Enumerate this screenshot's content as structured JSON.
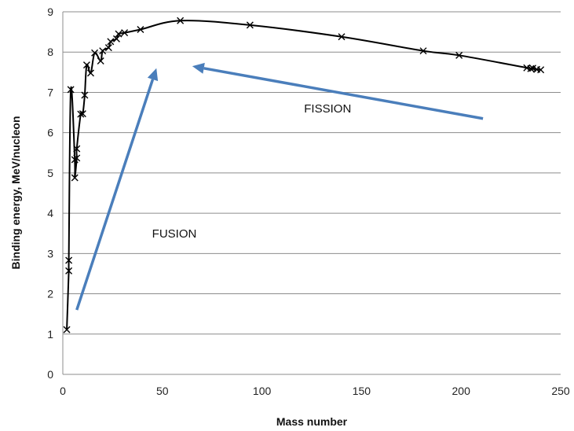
{
  "chart_data": {
    "type": "scatter",
    "xlabel": "Mass number",
    "ylabel": "Binding energy, MeV/nucleon",
    "xlim": [
      0,
      250
    ],
    "ylim": [
      0,
      9
    ],
    "xticks": [
      0,
      50,
      100,
      150,
      200,
      250
    ],
    "yticks": [
      0,
      1,
      2,
      3,
      4,
      5,
      6,
      7,
      8,
      9
    ],
    "grid": "horizontal",
    "marker": "x",
    "line": "smooth",
    "series": [
      {
        "x": [
          2,
          3,
          3,
          4,
          6,
          6,
          7,
          7,
          9,
          10,
          11,
          12,
          14,
          16,
          19,
          20,
          23,
          24,
          27,
          28,
          31,
          39,
          59,
          94,
          140,
          181,
          199,
          233,
          235,
          236,
          238,
          240
        ],
        "y": [
          1.11,
          2.57,
          2.83,
          7.07,
          5.33,
          4.88,
          5.37,
          5.6,
          6.46,
          6.47,
          6.93,
          7.68,
          7.48,
          7.98,
          7.78,
          8.03,
          8.11,
          8.26,
          8.33,
          8.45,
          8.48,
          8.56,
          8.78,
          8.67,
          8.38,
          8.03,
          7.92,
          7.61,
          7.59,
          7.6,
          7.57,
          7.56
        ]
      }
    ],
    "annotations": [
      {
        "text": "FUSION",
        "x": 56,
        "y": 3.4
      },
      {
        "text": "FISSION",
        "x": 133,
        "y": 6.5
      }
    ],
    "arrows": [
      {
        "name": "fusion-arrow",
        "from": [
          7,
          1.6
        ],
        "to": [
          47,
          7.6
        ]
      },
      {
        "name": "fission-arrow",
        "from": [
          211,
          6.35
        ],
        "to": [
          65,
          7.65
        ]
      }
    ],
    "colors": {
      "line": "#000000",
      "arrow": "#4a7ebb",
      "grid": "#8c8c8c"
    }
  }
}
